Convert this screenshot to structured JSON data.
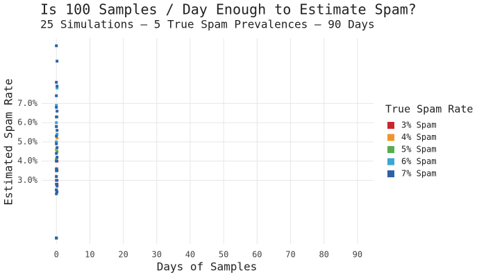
{
  "chart_data": {
    "type": "scatter",
    "title": "Is 100 Samples / Day Enough to Estimate Spam?",
    "subtitle": "25 Simulations – 5 True Spam Prevalences – 90 Days",
    "x_label": "Days of Samples",
    "y_label": "Estimated Spam Rate",
    "legend_title": "True Spam Rate",
    "legend_position": "right",
    "grid": true,
    "xlim": [
      -4.4,
      94.8
    ],
    "xticks": [
      0,
      10,
      20,
      30,
      40,
      50,
      60,
      70,
      80,
      90
    ],
    "ylim": [
      -0.3,
      10.4
    ],
    "yticks": [
      {
        "value": 3,
        "label": "3.0%"
      },
      {
        "value": 4,
        "label": "4.0%"
      },
      {
        "value": 5,
        "label": "5.0%"
      },
      {
        "value": 6,
        "label": "6.0%"
      },
      {
        "value": 7,
        "label": "7.0%"
      }
    ],
    "series": [
      {
        "name": "3% Spam",
        "color": "#c8282d",
        "x": [
          0,
          0,
          0,
          0,
          0.2,
          0.2
        ],
        "values": [
          0,
          2.5,
          3.0,
          3.5,
          4.0,
          2.8
        ]
      },
      {
        "name": "4% Spam",
        "color": "#ef962b",
        "x": [
          0,
          0,
          0,
          0,
          0.2,
          0.2
        ],
        "values": [
          0,
          3.2,
          4.0,
          4.6,
          5.2,
          3.6
        ]
      },
      {
        "name": "5% Spam",
        "color": "#56ae4e",
        "x": [
          0,
          0,
          0,
          0,
          0.2,
          0.2
        ],
        "values": [
          0,
          4.1,
          5.0,
          5.8,
          6.3,
          4.5
        ]
      },
      {
        "name": "6% Spam",
        "color": "#3ba7d1",
        "x": [
          0,
          0,
          0,
          0,
          0.2,
          0.2
        ],
        "values": [
          0,
          5.0,
          6.0,
          6.9,
          7.8,
          5.4
        ]
      },
      {
        "name": "7% Spam",
        "color": "#2b62a6",
        "x": [
          0,
          0,
          0,
          0,
          0,
          0,
          0,
          0,
          0,
          0,
          0,
          0,
          0,
          0,
          0,
          0,
          0.2,
          0.2,
          0.2,
          0.2,
          0.2,
          0.2,
          0.2,
          0.2,
          0.2,
          0.2
        ],
        "values": [
          0,
          2.3,
          2.5,
          2.8,
          3.2,
          3.6,
          4.0,
          4.4,
          4.9,
          5.3,
          5.8,
          6.3,
          6.8,
          7.4,
          8.1,
          10.0,
          2.4,
          2.7,
          3.0,
          3.5,
          4.2,
          4.7,
          5.6,
          6.6,
          7.9,
          9.2
        ]
      }
    ]
  }
}
